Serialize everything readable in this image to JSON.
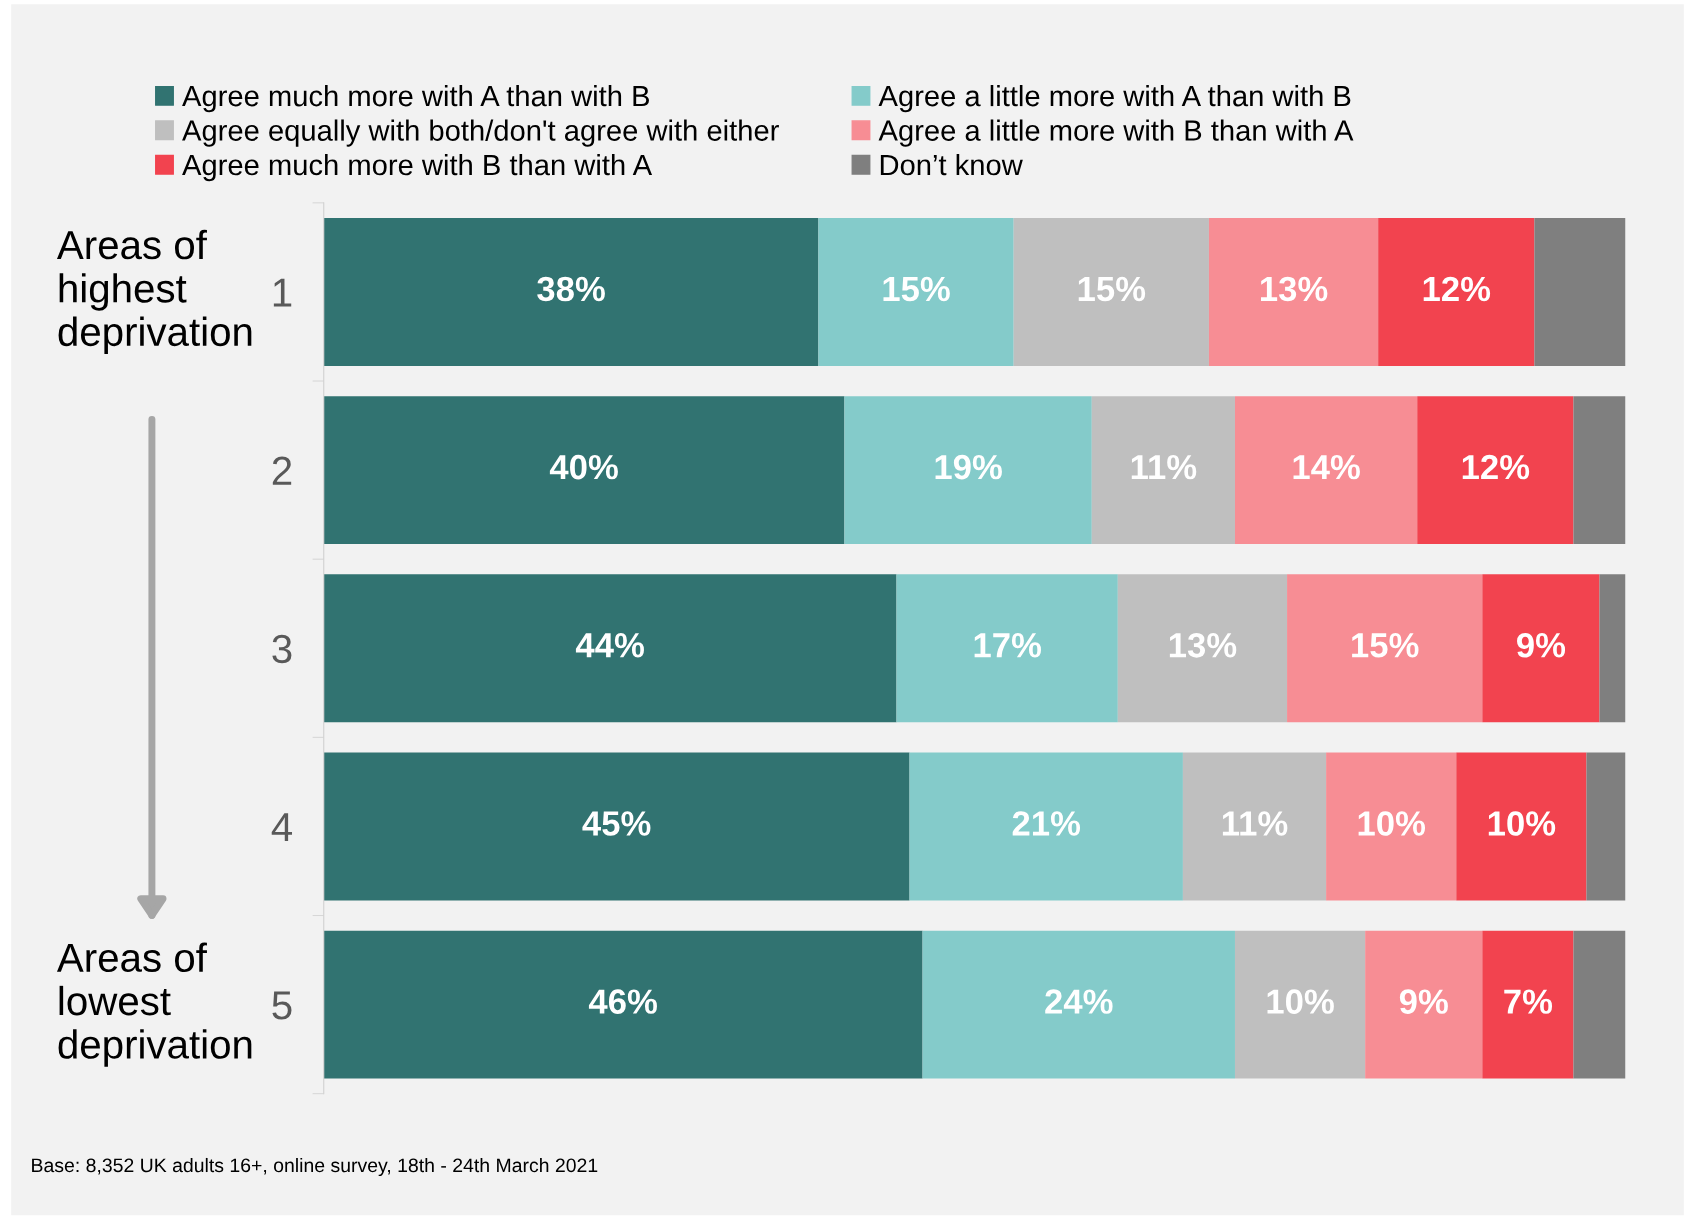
{
  "chart_data": {
    "type": "bar",
    "orientation": "horizontal",
    "stacked": true,
    "categories": [
      "1",
      "2",
      "3",
      "4",
      "5"
    ],
    "xlim": [
      0,
      100
    ],
    "tick_labels": "y",
    "grid": false,
    "legend": "top",
    "data_labels": true,
    "series": [
      {
        "name": "Agree much more with A than with B",
        "color": "#317371",
        "values": [
          38,
          40,
          44,
          45,
          46
        ],
        "value_labels": [
          "38%",
          "40%",
          "44%",
          "45%",
          "46%"
        ]
      },
      {
        "name": "Agree a little more with A than with B",
        "color": "#84cbca",
        "values": [
          15,
          19,
          17,
          21,
          24
        ],
        "value_labels": [
          "15%",
          "19%",
          "17%",
          "21%",
          "24%"
        ]
      },
      {
        "name": "Agree equally with both/don't agree with either",
        "color": "#bfbfbf",
        "values": [
          15,
          11,
          13,
          11,
          10
        ],
        "value_labels": [
          "15%",
          "11%",
          "13%",
          "11%",
          "10%"
        ]
      },
      {
        "name": "Agree a little more with B than with A",
        "color": "#f78d94",
        "values": [
          13,
          14,
          15,
          10,
          9
        ],
        "value_labels": [
          "13%",
          "14%",
          "15%",
          "10%",
          "9%"
        ]
      },
      {
        "name": "Agree much more with B than with A",
        "color": "#f2434f",
        "values": [
          12,
          12,
          9,
          10,
          7
        ],
        "value_labels": [
          "12%",
          "12%",
          "9%",
          "10%",
          "7%"
        ]
      },
      {
        "name": "Don’t know",
        "color": "#7f7f7f",
        "values": [
          7,
          4,
          2,
          3,
          4
        ],
        "value_labels": [
          null,
          null,
          null,
          null,
          null
        ]
      }
    ],
    "annotations": [
      "Areas of\nhighest\ndeprivation",
      "Areas of\nlowest\ndeprivation",
      "Base: 8,352 UK adults 16+, online survey, 18th - 24th March 2021"
    ]
  }
}
